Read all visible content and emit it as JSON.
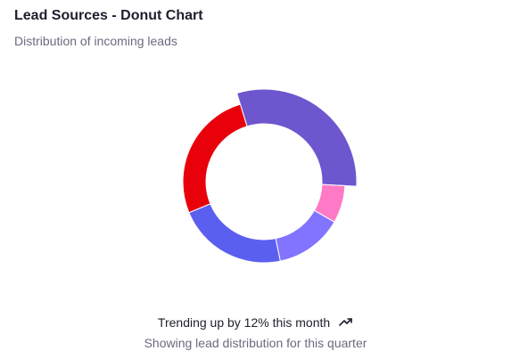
{
  "header": {
    "title": "Lead Sources - Donut Chart",
    "subtitle": "Distribution of incoming leads"
  },
  "footer": {
    "trend_text": "Trending up by 12% this month",
    "trend_icon": "trending-up-icon",
    "note": "Showing lead distribution for this quarter"
  },
  "chart_data": {
    "type": "pie",
    "variant": "donut",
    "title": "Lead Sources - Donut Chart",
    "subtitle": "Distribution of incoming leads",
    "legend": "none",
    "start_angle_deg": -17,
    "slices": [
      {
        "value": 30.5,
        "color": "#6e56cf"
      },
      {
        "value": 7.5,
        "color": "#ff7ac6"
      },
      {
        "value": 13.5,
        "color": "#8274ff"
      },
      {
        "value": 22.0,
        "color": "#5b5ff0"
      },
      {
        "value": 26.5,
        "color": "#e8000b"
      }
    ]
  }
}
